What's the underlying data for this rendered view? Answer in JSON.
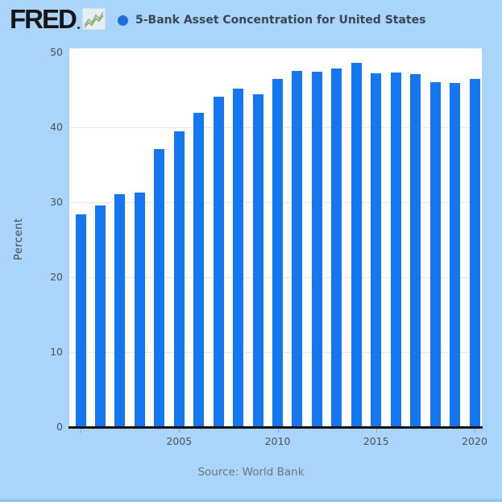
{
  "header": {
    "logo_text": "FRED",
    "series_title": "5-Bank Asset Concentration for United States"
  },
  "source": {
    "label": "Source: World Bank"
  },
  "colors": {
    "background": "#a9d5fa",
    "bar": "#1476f0",
    "legend_dot": "#1b70dd",
    "plot_background": "#ffffff",
    "axis_line": "#121212",
    "gridline": "#e8e8e8",
    "tick_text": "#4f5357",
    "title_text": "#3a4756",
    "source_text": "#6b7580"
  },
  "chart_data": {
    "type": "bar",
    "title": "5-Bank Asset Concentration for United States",
    "xlabel": "",
    "ylabel": "Percent",
    "ylim": [
      0,
      50
    ],
    "yticks": [
      0,
      10,
      20,
      30,
      40,
      50
    ],
    "gridline_values": [
      10,
      20,
      30,
      40
    ],
    "xticks": [
      {
        "year": 2000,
        "label": ""
      },
      {
        "year": 2005,
        "label": "2005"
      },
      {
        "year": 2010,
        "label": "2010"
      },
      {
        "year": 2015,
        "label": "2015"
      },
      {
        "year": 2020,
        "label": "2020"
      }
    ],
    "grid": true,
    "legend_position": "top",
    "x": [
      2000,
      2001,
      2002,
      2003,
      2004,
      2005,
      2006,
      2007,
      2008,
      2009,
      2010,
      2011,
      2012,
      2013,
      2014,
      2015,
      2016,
      2017,
      2018,
      2019,
      2020
    ],
    "values": [
      28.4,
      29.6,
      31.1,
      31.3,
      37.1,
      39.5,
      41.9,
      44.1,
      45.2,
      44.4,
      46.4,
      47.5,
      47.4,
      47.8,
      48.6,
      47.2,
      47.3,
      47.1,
      46.0,
      45.9,
      46.4
    ]
  }
}
